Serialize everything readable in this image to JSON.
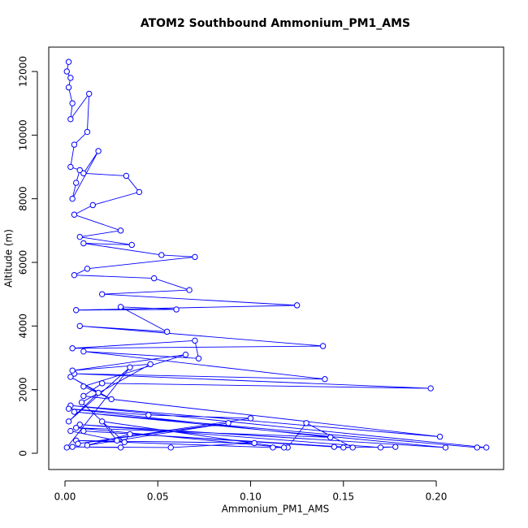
{
  "chart_data": {
    "type": "line",
    "title": "ATOM2 Southbound Ammonium_PM1_AMS",
    "x_label": "Ammonium_PM1_AMS",
    "y_label": "Altitude (m)",
    "color": "#0000ff",
    "markers": "open-circle",
    "x": [
      0.002,
      0.001,
      0.003,
      0.002,
      0.004,
      0.003,
      0.013,
      0.012,
      0.005,
      0.003,
      0.008,
      0.006,
      0.004,
      0.018,
      0.01,
      0.033,
      0.04,
      0.015,
      0.005,
      0.03,
      0.008,
      0.036,
      0.01,
      0.052,
      0.07,
      0.012,
      0.005,
      0.048,
      0.067,
      0.02,
      0.125,
      0.006,
      0.06,
      0.03,
      0.055,
      0.008,
      0.139,
      0.004,
      0.07,
      0.072,
      0.01,
      0.14,
      0.005,
      0.197,
      0.02,
      0.01,
      0.202,
      0.003,
      0.227,
      0.222,
      0.005,
      0.205,
      0.008,
      0.17,
      0.178,
      0.15,
      0.145,
      0.01,
      0.155,
      0.13,
      0.12,
      0.112,
      0.006,
      0.102,
      0.057,
      0.004,
      0.03,
      0.035,
      0.012,
      0.088,
      0.007,
      0.1,
      0.045,
      0.002,
      0.143,
      0.006,
      0.118,
      0.02,
      0.028,
      0.003,
      0.032,
      0.009,
      0.046,
      0.004,
      0.065,
      0.01,
      0.025,
      0.003,
      0.018,
      0.002,
      0.035,
      0.001
    ],
    "values": [
      12300,
      12000,
      11800,
      11500,
      11000,
      10500,
      11300,
      10100,
      9700,
      9000,
      8900,
      8500,
      8000,
      9500,
      8800,
      8720,
      8210,
      7800,
      7500,
      7000,
      6800,
      6550,
      6600,
      6230,
      6170,
      5800,
      5600,
      5500,
      5130,
      5000,
      4650,
      4500,
      4520,
      4600,
      3820,
      4000,
      3370,
      3300,
      3540,
      2980,
      3200,
      2330,
      2500,
      2040,
      2200,
      1800,
      520,
      1500,
      180,
      180,
      1300,
      180,
      900,
      180,
      200,
      180,
      200,
      700,
      180,
      950,
      180,
      180,
      400,
      320,
      180,
      200,
      180,
      600,
      250,
      950,
      300,
      1100,
      1200,
      1400,
      500,
      800,
      180,
      1000,
      400,
      700,
      350,
      1600,
      2800,
      2600,
      3100,
      2100,
      1700,
      2400,
      1900,
      1000,
      2700,
      180
    ],
    "xlim": [
      -0.00875,
      0.2363
    ],
    "ylim": [
      -511,
      12766
    ],
    "xticks": [
      {
        "value": 0,
        "label": "0.00"
      },
      {
        "value": 0.05,
        "label": "0.05"
      },
      {
        "value": 0.1,
        "label": "0.10"
      },
      {
        "value": 0.15,
        "label": "0.15"
      },
      {
        "value": 0.2,
        "label": "0.20"
      }
    ],
    "yticks": [
      0,
      2000,
      4000,
      6000,
      8000,
      10000,
      12000
    ]
  }
}
